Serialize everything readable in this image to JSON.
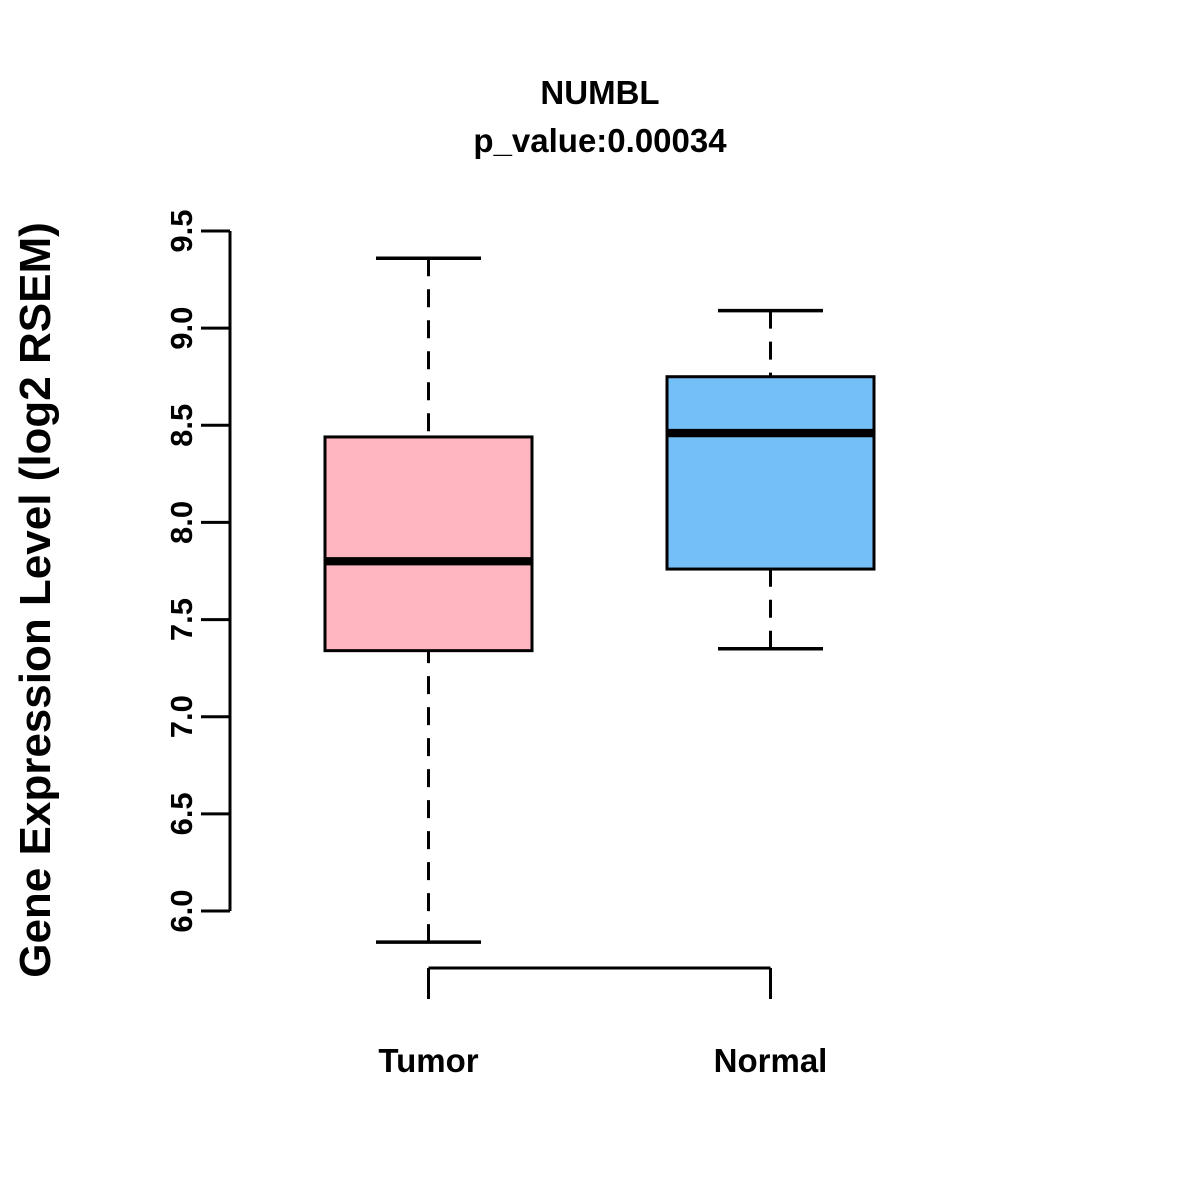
{
  "chart_data": {
    "type": "boxplot",
    "title": "NUMBL",
    "subtitle": "p_value:0.00034",
    "ylabel": "Gene Expression Level (log2 RSEM)",
    "xlabel": "",
    "categories": [
      "Tumor",
      "Normal"
    ],
    "ylim": [
      6.0,
      9.5
    ],
    "yticks": [
      6.0,
      6.5,
      7.0,
      7.5,
      8.0,
      8.5,
      9.0,
      9.5
    ],
    "grid": false,
    "legend": "none",
    "orientation": "vertical",
    "whisker_style": "dashed",
    "series": [
      {
        "name": "Tumor",
        "fill": "#FFB6C1",
        "whisker_low": 5.84,
        "q1": 7.34,
        "median": 7.8,
        "q3": 8.44,
        "whisker_high": 9.36
      },
      {
        "name": "Normal",
        "fill": "#74BFF7",
        "whisker_low": 7.35,
        "q1": 7.76,
        "median": 8.46,
        "q3": 8.75,
        "whisker_high": 9.09
      }
    ],
    "colors": {
      "box_outline": "#000000",
      "median_line": "#000000",
      "axis": "#000000",
      "background": "#FFFFFF"
    }
  }
}
